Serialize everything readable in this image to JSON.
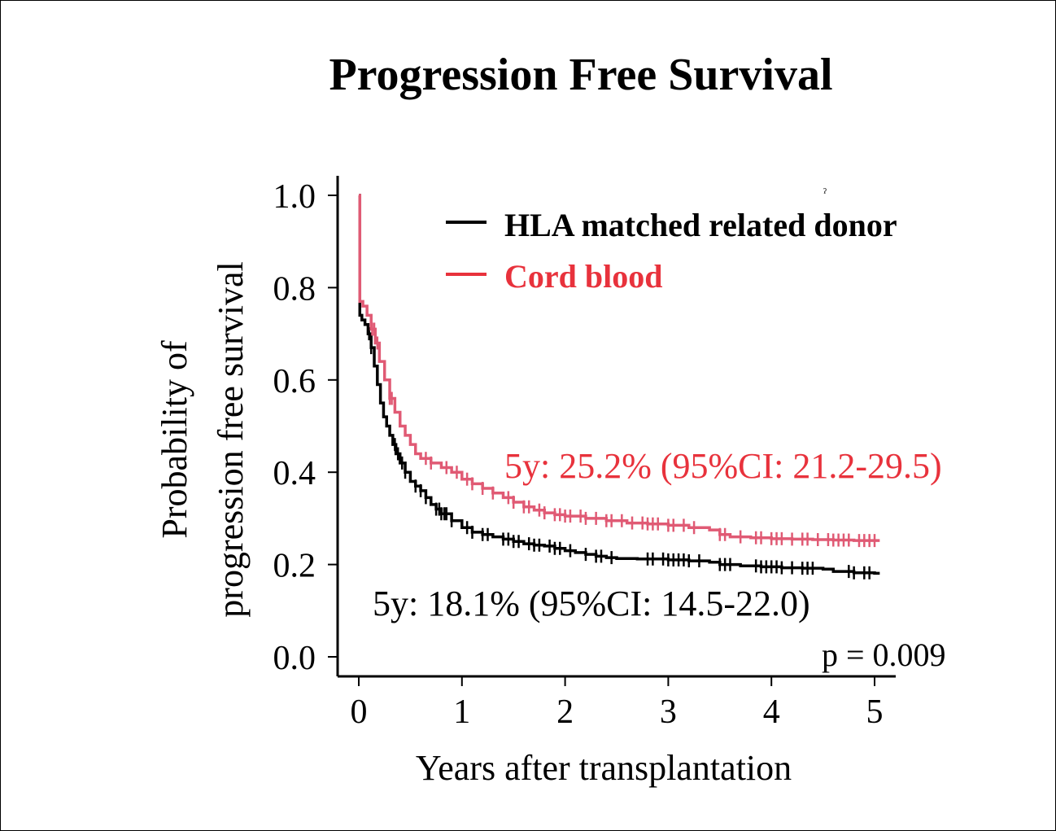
{
  "chart_data": {
    "type": "line",
    "subtype": "kaplan-meier",
    "title": "Progression Free Survival",
    "xlabel": "Years after transplantation",
    "ylabel_lines": [
      "Probability of",
      "progression free survival"
    ],
    "xlim": [
      0,
      5
    ],
    "ylim": [
      0,
      1
    ],
    "xticks": [
      0,
      1,
      2,
      3,
      4,
      5
    ],
    "yticks": [
      0.0,
      0.2,
      0.4,
      0.6,
      0.8,
      1.0
    ],
    "ytick_labels": [
      "0.0",
      "0.2",
      "0.4",
      "0.6",
      "0.8",
      "1.0"
    ],
    "grid": false,
    "legend_position": "top-right",
    "series": [
      {
        "name": "HLA matched related donor",
        "color": "#000000",
        "x": [
          0,
          0.01,
          0.03,
          0.06,
          0.09,
          0.12,
          0.15,
          0.18,
          0.21,
          0.24,
          0.27,
          0.3,
          0.33,
          0.36,
          0.4,
          0.45,
          0.5,
          0.55,
          0.6,
          0.65,
          0.7,
          0.75,
          0.8,
          0.9,
          1.0,
          1.1,
          1.2,
          1.3,
          1.4,
          1.5,
          1.6,
          1.7,
          1.8,
          1.9,
          2.0,
          2.1,
          2.2,
          2.3,
          2.4,
          2.5,
          2.7,
          3.0,
          3.2,
          3.4,
          3.5,
          3.7,
          3.9,
          4.1,
          4.3,
          4.5,
          4.6,
          4.8,
          5.0,
          5.05
        ],
        "y": [
          1.0,
          0.74,
          0.73,
          0.72,
          0.7,
          0.67,
          0.63,
          0.59,
          0.55,
          0.52,
          0.5,
          0.48,
          0.46,
          0.44,
          0.42,
          0.4,
          0.38,
          0.37,
          0.36,
          0.345,
          0.33,
          0.32,
          0.31,
          0.295,
          0.28,
          0.27,
          0.265,
          0.26,
          0.255,
          0.25,
          0.245,
          0.242,
          0.24,
          0.235,
          0.23,
          0.226,
          0.222,
          0.218,
          0.215,
          0.213,
          0.212,
          0.21,
          0.208,
          0.205,
          0.2,
          0.197,
          0.195,
          0.193,
          0.192,
          0.19,
          0.185,
          0.182,
          0.181,
          0.181
        ],
        "censor_x": [
          0.1,
          0.12,
          0.35,
          0.38,
          0.42,
          0.45,
          0.55,
          0.6,
          0.65,
          0.75,
          0.78,
          0.8,
          0.83,
          0.85,
          0.9,
          1.05,
          1.1,
          1.2,
          1.25,
          1.4,
          1.45,
          1.5,
          1.55,
          1.65,
          1.7,
          1.75,
          1.85,
          1.9,
          1.95,
          2.05,
          2.2,
          2.3,
          2.35,
          2.45,
          2.8,
          2.85,
          2.95,
          3.0,
          3.05,
          3.1,
          3.15,
          3.2,
          3.3,
          3.5,
          3.55,
          3.6,
          3.85,
          3.9,
          3.95,
          4.0,
          4.05,
          4.1,
          4.2,
          4.3,
          4.35,
          4.4,
          4.75,
          4.8,
          4.9,
          4.95
        ]
      },
      {
        "name": "Cord blood",
        "color": "#e05a74",
        "x": [
          0,
          0.01,
          0.04,
          0.08,
          0.12,
          0.16,
          0.2,
          0.25,
          0.3,
          0.35,
          0.4,
          0.45,
          0.5,
          0.55,
          0.6,
          0.7,
          0.8,
          0.9,
          1.0,
          1.1,
          1.2,
          1.3,
          1.4,
          1.5,
          1.6,
          1.7,
          1.8,
          1.9,
          2.0,
          2.2,
          2.4,
          2.6,
          2.8,
          3.0,
          3.2,
          3.4,
          3.5,
          3.6,
          3.8,
          4.0,
          4.2,
          4.4,
          4.6,
          4.8,
          5.0,
          5.05
        ],
        "y": [
          1.0,
          0.77,
          0.76,
          0.74,
          0.71,
          0.68,
          0.64,
          0.6,
          0.56,
          0.53,
          0.5,
          0.48,
          0.46,
          0.44,
          0.43,
          0.42,
          0.41,
          0.4,
          0.385,
          0.375,
          0.365,
          0.355,
          0.345,
          0.335,
          0.325,
          0.318,
          0.312,
          0.308,
          0.305,
          0.3,
          0.295,
          0.29,
          0.288,
          0.285,
          0.28,
          0.275,
          0.265,
          0.26,
          0.258,
          0.256,
          0.255,
          0.254,
          0.253,
          0.252,
          0.252,
          0.252
        ],
        "censor_x": [
          0.13,
          0.15,
          0.18,
          0.3,
          0.32,
          0.65,
          0.7,
          0.85,
          0.95,
          1.05,
          1.1,
          1.2,
          1.3,
          1.45,
          1.5,
          1.6,
          1.65,
          1.75,
          1.8,
          1.9,
          1.95,
          2.0,
          2.05,
          2.15,
          2.2,
          2.3,
          2.4,
          2.45,
          2.55,
          2.65,
          2.75,
          2.8,
          2.85,
          2.9,
          3.0,
          3.05,
          3.15,
          3.25,
          3.5,
          3.55,
          3.7,
          3.85,
          3.9,
          4.0,
          4.05,
          4.1,
          4.2,
          4.3,
          4.35,
          4.45,
          4.55,
          4.6,
          4.65,
          4.7,
          4.75,
          4.85,
          4.9,
          4.95,
          5.0
        ]
      }
    ],
    "annotations": {
      "cord_blood_5y": "5y: 25.2% (95%CI: 21.2-29.5)",
      "hla_5y": "5y: 18.1% (95%CI: 14.5-22.0)",
      "p_value": "p = 0.009",
      "stray_mark": "ˀ"
    }
  }
}
